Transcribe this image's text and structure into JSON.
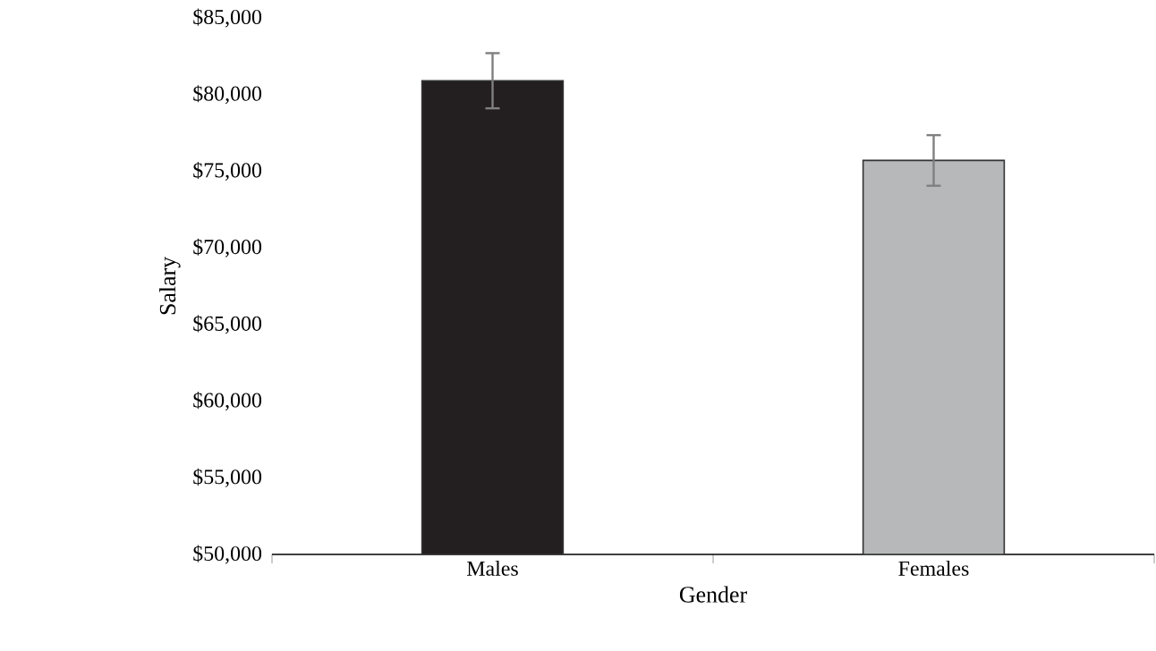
{
  "chart_data": {
    "type": "bar",
    "xlabel": "Gender",
    "ylabel": "Salary",
    "categories": [
      "Males",
      "Females"
    ],
    "values": [
      80900,
      75700
    ],
    "errors": [
      1800,
      1650
    ],
    "colors": [
      "#231f20",
      "#b7b8ba"
    ],
    "ylim": [
      50000,
      85000
    ],
    "yticks": [
      {
        "value": 50000,
        "label": "$50,000"
      },
      {
        "value": 55000,
        "label": "$55,000"
      },
      {
        "value": 60000,
        "label": "$60,000"
      },
      {
        "value": 65000,
        "label": "$65,000"
      },
      {
        "value": 70000,
        "label": "$70,000"
      },
      {
        "value": 75000,
        "label": "$75,000"
      },
      {
        "value": 80000,
        "label": "$80,000"
      },
      {
        "value": 85000,
        "label": "$85,000"
      }
    ],
    "grid": false
  }
}
